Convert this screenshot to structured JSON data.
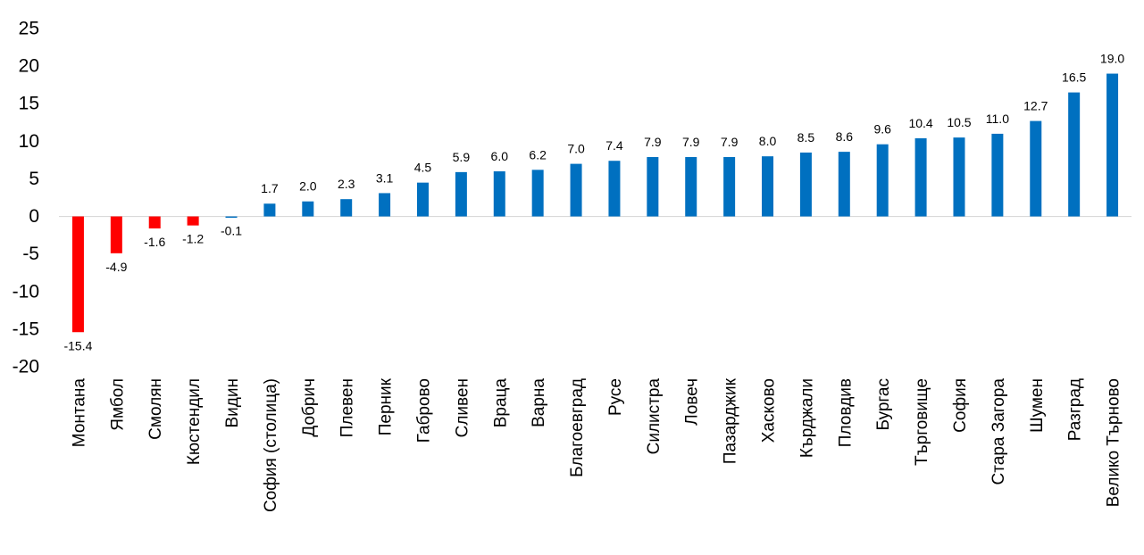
{
  "chart_data": {
    "type": "bar",
    "title": "",
    "xlabel": "",
    "ylabel": "",
    "ylim": [
      -20,
      25
    ],
    "yticks": [
      -20,
      -15,
      -10,
      -5,
      0,
      5,
      10,
      15,
      20,
      25
    ],
    "grid": false,
    "legend": "none",
    "colors": {
      "positive": "#0070C0",
      "negative": "#FF0000",
      "axis": "#d9d9d9",
      "text": "#000000"
    },
    "categories": [
      "Монтана",
      "Ямбол",
      "Смолян",
      "Кюстендил",
      "Видин",
      "София (столица)",
      "Добрич",
      "Плевен",
      "Перник",
      "Габрово",
      "Сливен",
      "Враца",
      "Варна",
      "Благоевград",
      "Русе",
      "Силистра",
      "Ловеч",
      "Пазарджик",
      "Хасково",
      "Кърджали",
      "Пловдив",
      "Бургас",
      "Търговище",
      "София",
      "Стара Загора",
      "Шумен",
      "Разград",
      "Велико Търново"
    ],
    "values": [
      -15.4,
      -4.9,
      -1.6,
      -1.2,
      -0.1,
      1.7,
      2.0,
      2.3,
      3.1,
      4.5,
      5.9,
      6.0,
      6.2,
      7.0,
      7.4,
      7.9,
      7.9,
      7.9,
      8.0,
      8.5,
      8.6,
      9.6,
      10.4,
      10.5,
      11.0,
      12.7,
      16.5,
      19.0
    ],
    "data_labels": [
      "-15.4",
      "-4.9",
      "-1.6",
      "-1.2",
      "-0.1",
      "1.7",
      "2.0",
      "2.3",
      "3.1",
      "4.5",
      "5.9",
      "6.0",
      "6.2",
      "7.0",
      "7.4",
      "7.9",
      "7.9",
      "7.9",
      "8.0",
      "8.5",
      "8.6",
      "9.6",
      "10.4",
      "10.5",
      "11.0",
      "12.7",
      "16.5",
      "19.0"
    ],
    "bar_colors": [
      "#FF0000",
      "#FF0000",
      "#FF0000",
      "#FF0000",
      "#0070C0",
      "#0070C0",
      "#0070C0",
      "#0070C0",
      "#0070C0",
      "#0070C0",
      "#0070C0",
      "#0070C0",
      "#0070C0",
      "#0070C0",
      "#0070C0",
      "#0070C0",
      "#0070C0",
      "#0070C0",
      "#0070C0",
      "#0070C0",
      "#0070C0",
      "#0070C0",
      "#0070C0",
      "#0070C0",
      "#0070C0",
      "#0070C0",
      "#0070C0",
      "#0070C0"
    ]
  }
}
